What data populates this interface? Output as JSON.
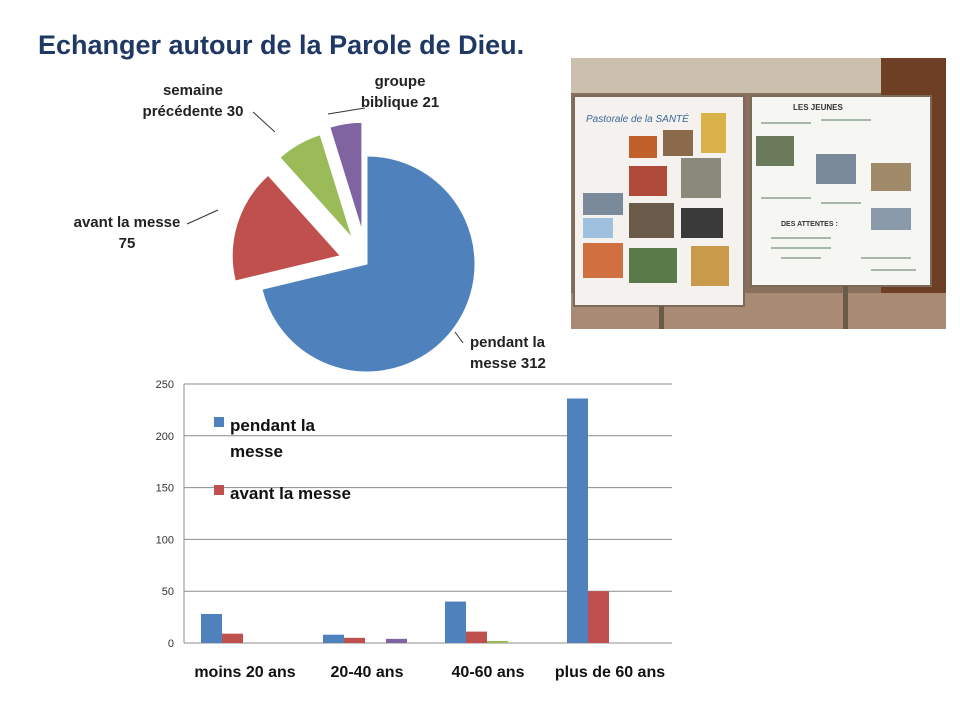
{
  "title": "Echanger autour de la Parole de Dieu.",
  "photo": {
    "left_board_title": "Pastorale de la SANTÉ",
    "right_board_title": "LES JEUNES",
    "right_board_subtitle": "DES ATTENTES :"
  },
  "chart_data": [
    {
      "type": "pie",
      "slices": [
        {
          "label": "pendant la messe 312",
          "label_lines": [
            "pendant la",
            "messe 312"
          ],
          "value": 312,
          "color": "#4f81bd"
        },
        {
          "label": "avant la messe 75",
          "label_lines": [
            "avant la messe",
            "75"
          ],
          "value": 75,
          "color": "#c0504d"
        },
        {
          "label": "semaine précédente 30",
          "label_lines": [
            "semaine",
            "précédente 30"
          ],
          "value": 30,
          "color": "#9bbb59"
        },
        {
          "label": "groupe biblique 21",
          "label_lines": [
            "groupe",
            "biblique 21"
          ],
          "value": 21,
          "color": "#8064a2"
        }
      ]
    },
    {
      "type": "bar",
      "categories": [
        "moins 20 ans",
        "20-40 ans",
        "40-60 ans",
        "plus de 60 ans"
      ],
      "series": [
        {
          "name": "pendant la messe",
          "legend_lines": [
            "pendant la",
            "messe"
          ],
          "values": [
            28,
            8,
            40,
            236
          ],
          "color": "#4f81bd"
        },
        {
          "name": "avant la messe",
          "legend_lines": [
            "avant la messe"
          ],
          "values": [
            9,
            5,
            11,
            50
          ],
          "color": "#c0504d"
        },
        {
          "values": [
            0,
            0,
            2,
            0
          ],
          "color": "#9bbb59"
        },
        {
          "values": [
            0,
            4,
            0,
            0
          ],
          "color": "#8064a2"
        }
      ],
      "ylim": [
        0,
        250
      ],
      "yticks": [
        0,
        50,
        100,
        150,
        200,
        250
      ],
      "grid": true,
      "legend_position": "top-left"
    }
  ]
}
